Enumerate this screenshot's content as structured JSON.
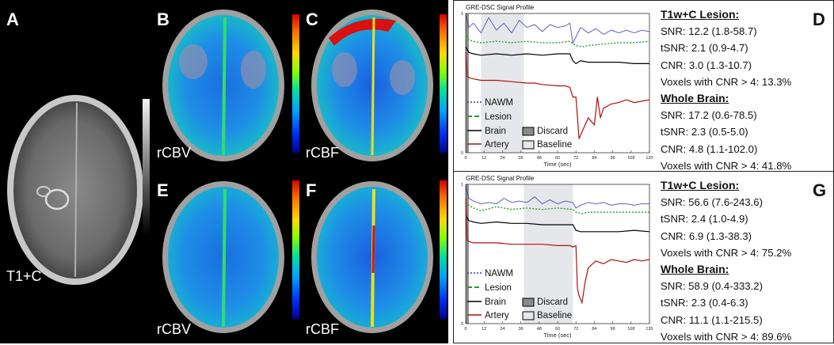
{
  "panels": {
    "A": {
      "letter": "A",
      "label": "T1+C"
    },
    "B": {
      "letter": "B",
      "label": "rCBV"
    },
    "C": {
      "letter": "C",
      "label": "rCBF"
    },
    "E": {
      "letter": "E",
      "label": "rCBV"
    },
    "F": {
      "letter": "F",
      "label": "rCBF"
    }
  },
  "profile_D": {
    "letter": "D",
    "chart_title": "GRE-DSC Signal Profile",
    "xlabel": "Time (sec)",
    "x_ticks": [
      "0",
      "12",
      "24",
      "36",
      "48",
      "60",
      "72",
      "84",
      "96",
      "108",
      "120"
    ],
    "y_ticks": [
      "0",
      "1"
    ],
    "legend": {
      "nawm": "NAWM",
      "lesion": "Lesion",
      "brain": "Brain",
      "artery": "Artery",
      "discard": "Discard",
      "baseline": "Baseline"
    },
    "stats": {
      "lesion_header": "T1w+C Lesion:",
      "lesion_lines": [
        "SNR: 12.2 (1.8-58.7)",
        "tSNR: 2.1 (0.9-4.7)",
        "CNR: 3.0 (1.3-10.7)",
        "Voxels with CNR > 4: 13.3%"
      ],
      "brain_header": "Whole Brain:",
      "brain_lines": [
        "SNR: 17.2 (0.6-78.5)",
        "tSNR: 2.3 (0.5-5.0)",
        "CNR: 4.8 (1.1-102.0)",
        "Voxels with CNR > 4: 41.8%"
      ]
    }
  },
  "profile_G": {
    "letter": "G",
    "chart_title": "GRE-DSC Signal Profile",
    "xlabel": "Time (sec)",
    "x_ticks": [
      "0",
      "12",
      "24",
      "36",
      "48",
      "60",
      "72",
      "84",
      "96",
      "108",
      "120"
    ],
    "y_ticks": [
      "0",
      "1"
    ],
    "legend": {
      "nawm": "NAWM",
      "lesion": "Lesion",
      "brain": "Brain",
      "artery": "Artery",
      "discard": "Discard",
      "baseline": "Baseline"
    },
    "stats": {
      "lesion_header": "T1w+C Lesion:",
      "lesion_lines": [
        "SNR: 56.6 (7.6-243.6)",
        "tSNR: 2.4 (1.0-4.9)",
        "CNR: 6.9 (1.3-38.3)",
        "Voxels with CNR > 4: 75.2%"
      ],
      "brain_header": "Whole Brain:",
      "brain_lines": [
        "SNR: 58.9 (0.4-333.2)",
        "tSNR: 2.3 (0.4-6.3)",
        "CNR: 11.1 (1.1-215.5)",
        "Voxels with CNR > 4: 89.6%"
      ]
    }
  },
  "chart_data": [
    {
      "type": "line",
      "title": "GRE-DSC Signal Profile",
      "xlabel": "Time (sec)",
      "xlim": [
        0,
        120
      ],
      "ylim": [
        0,
        1
      ],
      "discard_window_sec": [
        0,
        2
      ],
      "baseline_window_sec": [
        10,
        38
      ],
      "series": [
        {
          "name": "NAWM",
          "color": "#3a3ab0",
          "x": [
            0,
            2,
            5,
            10,
            15,
            20,
            25,
            30,
            35,
            40,
            45,
            50,
            55,
            60,
            65,
            68,
            70,
            72,
            75,
            80,
            85,
            90,
            95,
            100,
            105,
            110,
            115,
            120
          ],
          "y": [
            0.99,
            0.9,
            0.93,
            0.86,
            0.97,
            0.88,
            0.93,
            0.86,
            0.95,
            0.9,
            0.92,
            0.87,
            0.92,
            0.9,
            0.91,
            0.93,
            0.79,
            0.83,
            0.9,
            0.86,
            0.89,
            0.85,
            0.88,
            0.86,
            0.88,
            0.86,
            0.88,
            0.87
          ]
        },
        {
          "name": "Lesion",
          "color": "#2a9a2a",
          "x": [
            0,
            2,
            5,
            10,
            20,
            30,
            40,
            50,
            60,
            68,
            72,
            76,
            80,
            90,
            100,
            110,
            120
          ],
          "y": [
            0.86,
            0.81,
            0.8,
            0.79,
            0.8,
            0.79,
            0.8,
            0.79,
            0.79,
            0.8,
            0.77,
            0.76,
            0.77,
            0.78,
            0.79,
            0.79,
            0.8
          ]
        },
        {
          "name": "Brain",
          "color": "#000000",
          "x": [
            0,
            2,
            5,
            10,
            20,
            30,
            40,
            50,
            60,
            68,
            70,
            72,
            75,
            80,
            90,
            100,
            110,
            120
          ],
          "y": [
            0.76,
            0.72,
            0.71,
            0.7,
            0.71,
            0.7,
            0.71,
            0.7,
            0.71,
            0.71,
            0.66,
            0.64,
            0.66,
            0.65,
            0.65,
            0.65,
            0.64,
            0.64
          ]
        },
        {
          "name": "Artery",
          "color": "#b01010",
          "x": [
            0,
            1,
            2,
            5,
            10,
            20,
            30,
            40,
            45,
            50,
            60,
            65,
            68,
            70,
            72,
            74,
            76,
            78,
            80,
            84,
            86,
            88,
            90,
            95,
            100,
            105,
            110,
            115,
            120
          ],
          "y": [
            0.72,
            0.55,
            0.54,
            0.53,
            0.52,
            0.52,
            0.51,
            0.5,
            0.5,
            0.49,
            0.48,
            0.48,
            0.47,
            0.4,
            0.4,
            0.1,
            0.15,
            0.2,
            0.25,
            0.2,
            0.4,
            0.25,
            0.32,
            0.35,
            0.36,
            0.38,
            0.36,
            0.37,
            0.38
          ]
        }
      ]
    },
    {
      "type": "line",
      "title": "GRE-DSC Signal Profile",
      "xlabel": "Time (sec)",
      "xlim": [
        0,
        120
      ],
      "ylim": [
        0,
        1
      ],
      "discard_window_sec": [
        0,
        2
      ],
      "baseline_window_sec": [
        38,
        70
      ],
      "series": [
        {
          "name": "NAWM",
          "color": "#3a3ab0",
          "x": [
            0,
            2,
            5,
            10,
            15,
            20,
            25,
            30,
            35,
            40,
            45,
            50,
            55,
            60,
            65,
            70,
            72,
            75,
            80,
            85,
            90,
            95,
            100,
            105,
            110,
            115,
            120
          ],
          "y": [
            0.99,
            0.9,
            0.88,
            0.86,
            0.87,
            0.86,
            0.9,
            0.87,
            0.88,
            0.87,
            0.91,
            0.86,
            0.89,
            0.86,
            0.88,
            0.87,
            0.83,
            0.85,
            0.87,
            0.86,
            0.87,
            0.85,
            0.86,
            0.86,
            0.85,
            0.86,
            0.86
          ]
        },
        {
          "name": "Lesion",
          "color": "#2a9a2a",
          "x": [
            0,
            2,
            5,
            10,
            20,
            30,
            40,
            50,
            60,
            70,
            72,
            76,
            80,
            90,
            100,
            110,
            120
          ],
          "y": [
            0.87,
            0.85,
            0.83,
            0.81,
            0.84,
            0.82,
            0.83,
            0.82,
            0.83,
            0.82,
            0.8,
            0.79,
            0.8,
            0.8,
            0.8,
            0.8,
            0.8
          ]
        },
        {
          "name": "Brain",
          "color": "#000000",
          "x": [
            0,
            2,
            5,
            10,
            20,
            30,
            40,
            50,
            60,
            70,
            72,
            75,
            80,
            90,
            100,
            110,
            120
          ],
          "y": [
            0.78,
            0.74,
            0.73,
            0.72,
            0.73,
            0.72,
            0.72,
            0.71,
            0.71,
            0.71,
            0.67,
            0.66,
            0.66,
            0.66,
            0.66,
            0.67,
            0.66
          ]
        },
        {
          "name": "Artery",
          "color": "#b01010",
          "x": [
            0,
            1,
            2,
            5,
            10,
            20,
            30,
            40,
            50,
            60,
            68,
            70,
            72,
            73,
            74,
            76,
            78,
            80,
            85,
            90,
            95,
            100,
            105,
            110,
            115,
            120
          ],
          "y": [
            0.9,
            0.6,
            0.59,
            0.58,
            0.58,
            0.58,
            0.57,
            0.57,
            0.57,
            0.56,
            0.56,
            0.55,
            0.56,
            0.25,
            0.2,
            0.15,
            0.3,
            0.4,
            0.45,
            0.43,
            0.46,
            0.45,
            0.44,
            0.46,
            0.45,
            0.46
          ]
        }
      ]
    }
  ]
}
